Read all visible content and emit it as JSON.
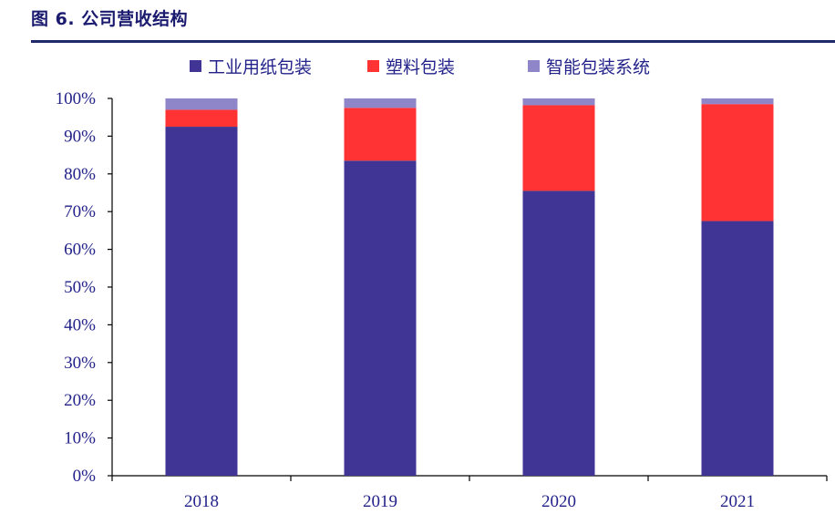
{
  "figure": {
    "title": "图 6. 公司营收结构"
  },
  "chart_data": {
    "type": "bar",
    "stacked": true,
    "categories": [
      "2018",
      "2019",
      "2020",
      "2021"
    ],
    "series": [
      {
        "name": "工业用纸包装",
        "color": "#403494",
        "values": [
          92.5,
          83.5,
          75.5,
          67.5
        ]
      },
      {
        "name": "塑料包装",
        "color": "#ff3333",
        "values": [
          4.5,
          14.0,
          22.7,
          31.0
        ]
      },
      {
        "name": "智能包装系统",
        "color": "#8f86c9",
        "values": [
          3.0,
          2.5,
          1.8,
          1.5
        ]
      }
    ],
    "ylim": [
      0,
      100
    ],
    "yticks": [
      "0%",
      "10%",
      "20%",
      "30%",
      "40%",
      "50%",
      "60%",
      "70%",
      "80%",
      "90%",
      "100%"
    ],
    "grid": false,
    "legend_position": "top"
  }
}
